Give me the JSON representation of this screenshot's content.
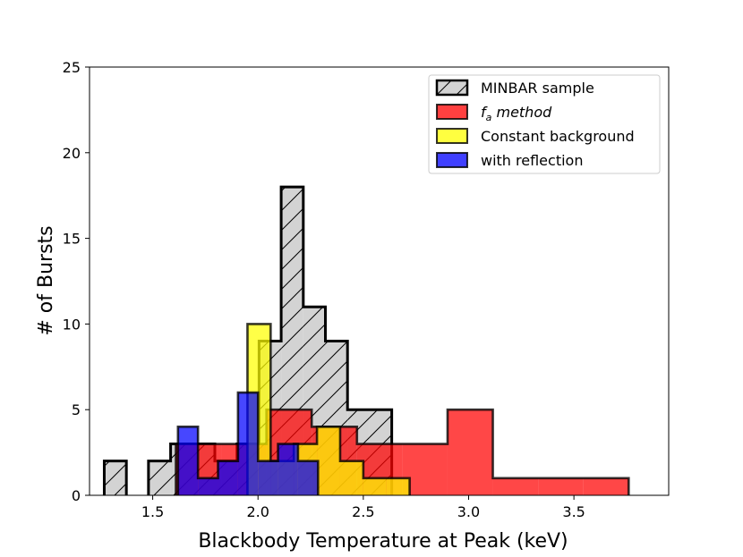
{
  "chart_data": {
    "type": "histogram",
    "xlabel": "Blackbody Temperature at Peak (keV)",
    "ylabel": "# of Bursts",
    "xlim": [
      1.2,
      3.95
    ],
    "ylim": [
      0,
      25
    ],
    "xticks": [
      1.5,
      2.0,
      2.5,
      3.0,
      3.5
    ],
    "xtick_labels": [
      "1.5",
      "2.0",
      "2.5",
      "3.0",
      "3.5"
    ],
    "yticks": [
      0,
      5,
      10,
      15,
      20,
      25
    ],
    "ytick_labels": [
      "0",
      "5",
      "10",
      "15",
      "20",
      "25"
    ],
    "legend_position": "top-right",
    "series": [
      {
        "name": "MINBAR sample",
        "label_main": "MINBAR sample",
        "label_sub": "",
        "label_tail": "",
        "color": "#d3d3d3",
        "edge_color": "#000000",
        "hatch": true,
        "edges": [
          1.27,
          1.375,
          1.48,
          1.585,
          1.69,
          1.795,
          1.9,
          2.005,
          2.11,
          2.215,
          2.32,
          2.425,
          2.53,
          2.635
        ],
        "counts": [
          2,
          0,
          2,
          3,
          3,
          2,
          3,
          9,
          18,
          11,
          9,
          5,
          5
        ]
      },
      {
        "name": "f_a method",
        "label_main": "f",
        "label_sub": "a",
        "label_tail": " method",
        "color": "#ff0000",
        "edge_color": "#000000",
        "hatch": false,
        "edges": [
          1.61,
          1.825,
          2.04,
          2.255,
          2.47,
          2.685,
          2.9,
          3.115,
          3.33,
          3.545,
          3.76
        ],
        "counts": [
          3,
          3,
          5,
          4,
          3,
          3,
          5,
          1,
          1,
          1
        ]
      },
      {
        "name": "Constant background",
        "label_main": "Constant background",
        "label_sub": "",
        "label_tail": "",
        "color": "#ffff00",
        "edge_color": "#000000",
        "hatch": false,
        "edges": [
          1.62,
          1.73,
          1.84,
          1.95,
          2.06,
          2.17,
          2.28,
          2.39,
          2.5,
          2.61,
          2.72
        ],
        "counts": [
          0,
          0,
          0,
          10,
          2,
          3,
          4,
          2,
          1,
          1
        ]
      },
      {
        "name": "with reflection",
        "label_main": "with reflection",
        "label_sub": "",
        "label_tail": "",
        "color": "#0000ff",
        "edge_color": "#000000",
        "hatch": false,
        "edges": [
          1.62,
          1.715,
          1.81,
          1.905,
          2.0,
          2.095,
          2.19,
          2.285
        ],
        "counts": [
          4,
          1,
          2,
          6,
          2,
          3,
          2
        ]
      }
    ]
  }
}
